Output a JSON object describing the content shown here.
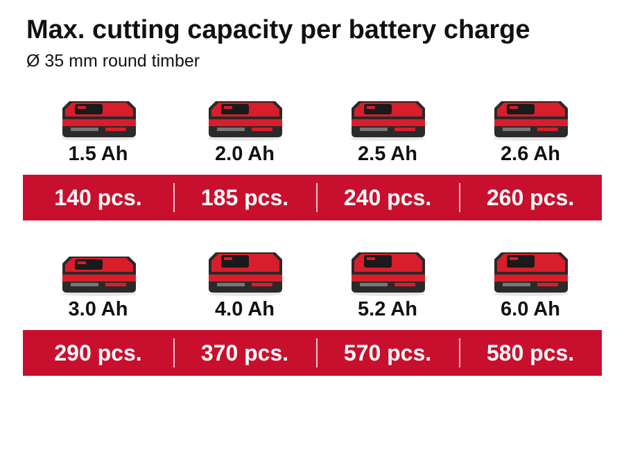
{
  "title": "Max. cutting capacity per battery charge",
  "subtitle": "Ø 35 mm round timber",
  "colors": {
    "accent_red": "#c8102e",
    "text": "#111111",
    "battery_black": "#2a2a2a",
    "battery_red": "#d81e2a"
  },
  "rows": [
    {
      "batteries": [
        {
          "capacity": "1.5 Ah",
          "pieces": "140 pcs.",
          "icon": "battery-pack-icon"
        },
        {
          "capacity": "2.0 Ah",
          "pieces": "185 pcs.",
          "icon": "battery-pack-icon"
        },
        {
          "capacity": "2.5 Ah",
          "pieces": "240 pcs.",
          "icon": "battery-pack-icon"
        },
        {
          "capacity": "2.6 Ah",
          "pieces": "260 pcs.",
          "icon": "battery-pack-icon"
        }
      ]
    },
    {
      "batteries": [
        {
          "capacity": "3.0 Ah",
          "pieces": "290 pcs.",
          "icon": "battery-pack-icon"
        },
        {
          "capacity": "4.0 Ah",
          "pieces": "370 pcs.",
          "icon": "battery-pack-icon"
        },
        {
          "capacity": "5.2 Ah",
          "pieces": "570 pcs.",
          "icon": "battery-pack-icon"
        },
        {
          "capacity": "6.0 Ah",
          "pieces": "580 pcs.",
          "icon": "battery-pack-icon"
        }
      ]
    }
  ]
}
